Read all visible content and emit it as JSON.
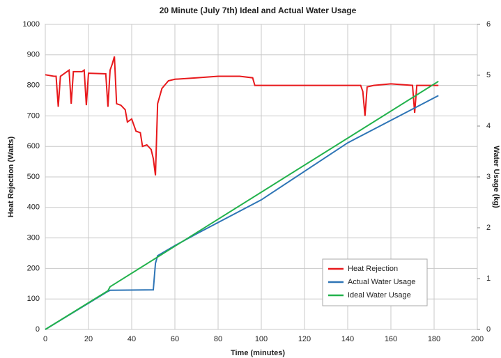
{
  "chart_data": {
    "type": "line",
    "title": "20 Minute (July 7th) Ideal and Actual Water Usage",
    "x_label": "Time (minutes)",
    "y_label": "Heat Rejection (Watts)",
    "y2_label": "Water Usage (kg)",
    "xlim": [
      0,
      200
    ],
    "xticks": [
      0,
      20,
      40,
      60,
      80,
      100,
      120,
      140,
      160,
      180,
      200
    ],
    "ylim": [
      0,
      1000
    ],
    "yticks": [
      0,
      100,
      200,
      300,
      400,
      500,
      600,
      700,
      800,
      900,
      1000
    ],
    "y2lim": [
      0,
      6
    ],
    "y2ticks": [
      0,
      1,
      2,
      3,
      4,
      5,
      6
    ],
    "grid": true,
    "legend": "lower right",
    "series": [
      {
        "name": "Heat Rejection",
        "color": "#e8191c",
        "x": [
          0,
          4,
          5,
          6,
          7,
          10,
          11,
          12,
          13,
          17,
          18,
          19,
          20,
          28,
          29,
          30,
          31,
          32,
          33,
          35,
          37,
          38,
          40,
          42,
          44,
          45,
          47,
          49,
          50,
          51,
          52,
          54,
          57,
          60,
          70,
          80,
          90,
          96,
          97,
          100,
          110,
          120,
          130,
          140,
          146,
          147,
          148,
          149,
          152,
          160,
          170,
          171,
          172,
          182
        ],
        "values": [
          835,
          830,
          830,
          730,
          830,
          845,
          850,
          740,
          845,
          845,
          850,
          735,
          840,
          838,
          730,
          850,
          870,
          895,
          740,
          735,
          720,
          680,
          690,
          650,
          645,
          600,
          605,
          590,
          560,
          505,
          740,
          790,
          815,
          820,
          825,
          830,
          830,
          825,
          800,
          800,
          800,
          800,
          800,
          800,
          800,
          780,
          700,
          795,
          800,
          805,
          800,
          710,
          800,
          800
        ]
      },
      {
        "name": "Actual Water Usage",
        "color": "#2e75b6",
        "axis": "y2",
        "x": [
          0,
          29,
          30,
          50,
          51,
          52,
          60,
          70,
          100,
          140,
          182
        ],
        "values": [
          0,
          0.75,
          0.77,
          0.78,
          1.3,
          1.45,
          1.65,
          1.88,
          2.55,
          3.67,
          4.6
        ]
      },
      {
        "name": "Ideal Water Usage",
        "color": "#22b24c",
        "axis": "y2",
        "x": [
          0,
          29,
          30,
          182
        ],
        "values": [
          0,
          0.76,
          0.84,
          4.88
        ]
      }
    ]
  }
}
